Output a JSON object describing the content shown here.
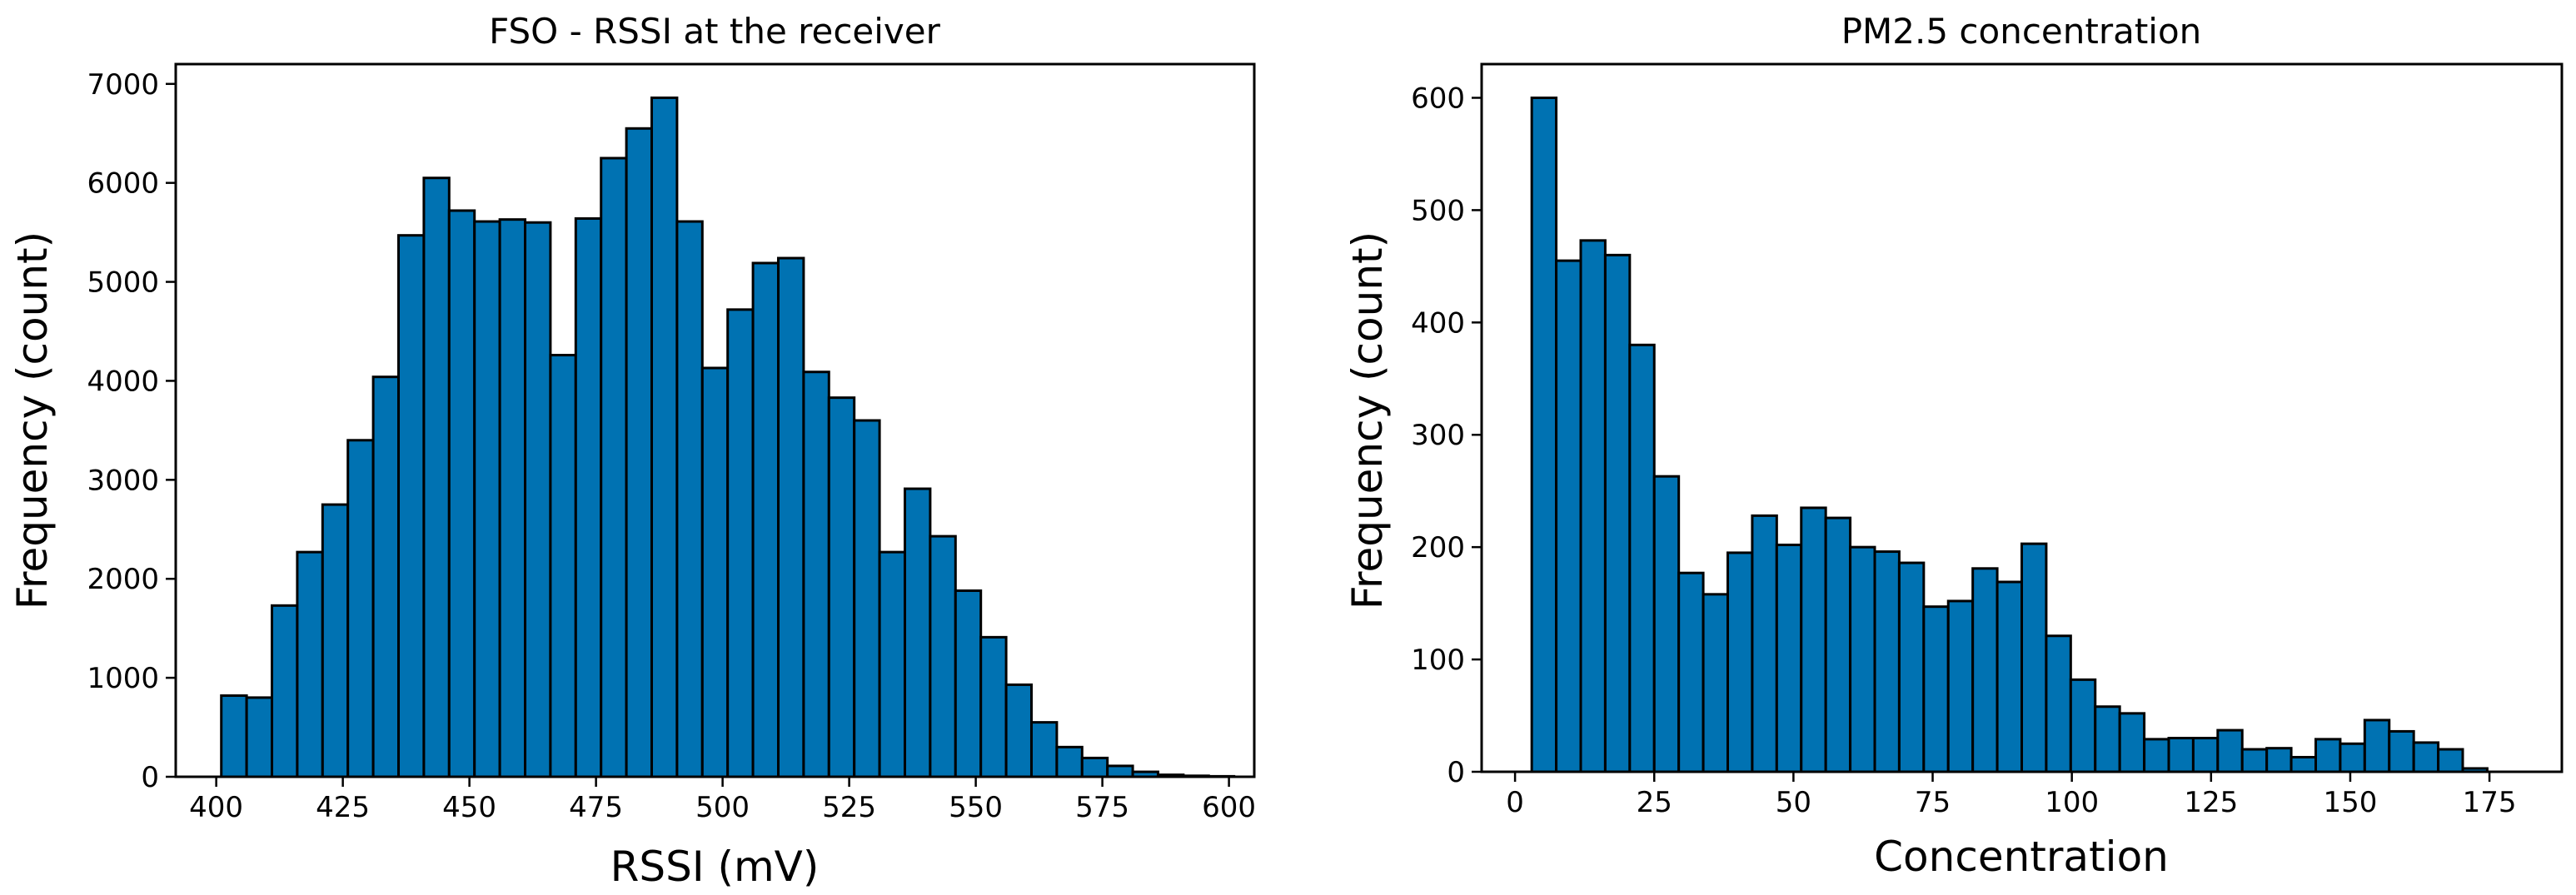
{
  "colors": {
    "bar_fill": "#0072b2",
    "bar_edge": "#000000",
    "axes": "#000000",
    "background": "#ffffff"
  },
  "chart_data": [
    {
      "type": "bar",
      "title": "FSO - RSSI at the receiver",
      "xlabel": "RSSI (mV)",
      "ylabel": "Frequency (count)",
      "xlim": [
        392,
        605
      ],
      "ylim": [
        0,
        7200
      ],
      "bin_start": 401,
      "bin_width": 5,
      "values": [
        820,
        800,
        1730,
        2270,
        2750,
        3400,
        4040,
        5470,
        6050,
        5720,
        5610,
        5630,
        5600,
        4260,
        5640,
        6250,
        6550,
        6860,
        5610,
        4130,
        4720,
        5190,
        5240,
        4090,
        3830,
        3600,
        2270,
        2910,
        2430,
        1880,
        1410,
        930,
        550,
        300,
        190,
        110,
        50,
        20,
        10,
        5
      ],
      "x_ticks": [
        400,
        425,
        450,
        475,
        500,
        525,
        550,
        575,
        600
      ],
      "y_ticks": [
        0,
        1000,
        2000,
        3000,
        4000,
        5000,
        6000,
        7000
      ],
      "grid": false
    },
    {
      "type": "bar",
      "title": "PM2.5 concentration",
      "xlabel": "Concentration",
      "ylabel": "Frequency (count)",
      "xlim": [
        -6,
        188
      ],
      "ylim": [
        0,
        630
      ],
      "bin_start": 3,
      "bin_width": 4.4,
      "values": [
        600,
        455,
        473,
        460,
        380,
        263,
        177,
        158,
        195,
        228,
        202,
        235,
        226,
        200,
        196,
        186,
        147,
        152,
        181,
        169,
        203,
        121,
        82,
        58,
        52,
        29,
        30,
        30,
        37,
        20,
        21,
        13,
        29,
        25,
        46,
        36,
        26,
        20,
        3
      ],
      "x_ticks": [
        0,
        25,
        50,
        75,
        100,
        125,
        150,
        175
      ],
      "y_ticks": [
        0,
        100,
        200,
        300,
        400,
        500,
        600
      ],
      "grid": false
    }
  ]
}
